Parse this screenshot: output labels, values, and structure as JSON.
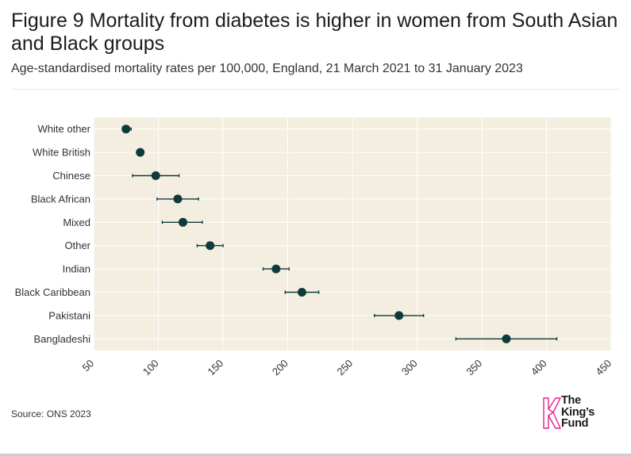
{
  "header": {
    "title": "Figure 9 Mortality from diabetes is higher in women from South Asian and Black groups",
    "subtitle": "Age-standardised mortality rates per 100,000, England, 21 March 2021 to 31 January 2023"
  },
  "footer": {
    "source": "Source: ONS 2023",
    "logo_lines": [
      "The",
      "King’s",
      "Fund"
    ]
  },
  "colors": {
    "plot_bg": "#f4eee1",
    "grid": "#ffffff",
    "marker": "#0e3b3a",
    "logo_accent": "#e0248a"
  },
  "chart_data": {
    "type": "scatter",
    "orientation": "horizontal-dot-with-error-bars",
    "title": "Figure 9 Mortality from diabetes is higher in women from South Asian and Black groups",
    "subtitle": "Age-standardised mortality rates per 100,000, England, 21 March 2021 to 31 January 2023",
    "xlabel": "",
    "ylabel": "",
    "xlim": [
      50,
      450
    ],
    "xticks": [
      50,
      100,
      150,
      200,
      250,
      300,
      350,
      400,
      450
    ],
    "xtick_labels": [
      "50",
      "100",
      "150",
      "200",
      "250",
      "300",
      "350",
      "400",
      "450"
    ],
    "grid": true,
    "series": [
      {
        "category": "White other",
        "value": 75,
        "lower": 73,
        "upper": 79
      },
      {
        "category": "White British",
        "value": 86,
        "lower": 85,
        "upper": 87
      },
      {
        "category": "Chinese",
        "value": 98,
        "lower": 80,
        "upper": 116
      },
      {
        "category": "Black African",
        "value": 115,
        "lower": 99,
        "upper": 131
      },
      {
        "category": "Mixed",
        "value": 119,
        "lower": 103,
        "upper": 134
      },
      {
        "category": "Other",
        "value": 140,
        "lower": 130,
        "upper": 150
      },
      {
        "category": "Indian",
        "value": 191,
        "lower": 181,
        "upper": 201
      },
      {
        "category": "Black Caribbean",
        "value": 211,
        "lower": 198,
        "upper": 224
      },
      {
        "category": "Pakistani",
        "value": 286,
        "lower": 267,
        "upper": 305
      },
      {
        "category": "Bangladeshi",
        "value": 369,
        "lower": 330,
        "upper": 408
      }
    ]
  }
}
